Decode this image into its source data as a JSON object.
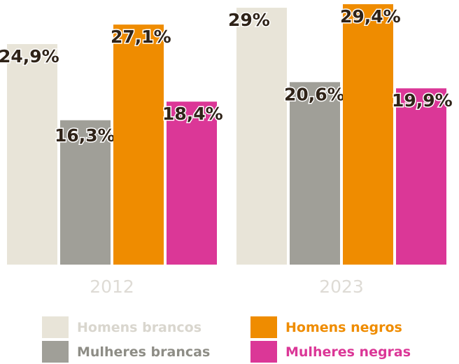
{
  "chart_data": {
    "type": "bar",
    "categories": [
      "2012",
      "2023"
    ],
    "series": [
      {
        "name": "Homens brancos",
        "values": [
          24.9,
          29.0
        ],
        "labels": [
          "24,9%",
          "29%"
        ],
        "color": "#e8e4d8",
        "label_color": "#d9d6ce"
      },
      {
        "name": "Mulheres brancas",
        "values": [
          16.3,
          20.6
        ],
        "labels": [
          "16,3%",
          "20,6%"
        ],
        "color": "#a09f98",
        "label_color": "#8e8d86"
      },
      {
        "name": "Homens negros",
        "values": [
          27.1,
          29.4
        ],
        "labels": [
          "27,1%",
          "29,4%"
        ],
        "color": "#ef8c00",
        "label_color": "#ef8c00"
      },
      {
        "name": "Mulheres negras",
        "values": [
          18.4,
          19.9
        ],
        "labels": [
          "18,4%",
          "19,9%"
        ],
        "color": "#db3797",
        "label_color": "#db3797"
      }
    ],
    "ylim": [
      0,
      30
    ],
    "title": "",
    "xlabel": "",
    "ylabel": "",
    "grid": false,
    "legend_position": "bottom"
  }
}
